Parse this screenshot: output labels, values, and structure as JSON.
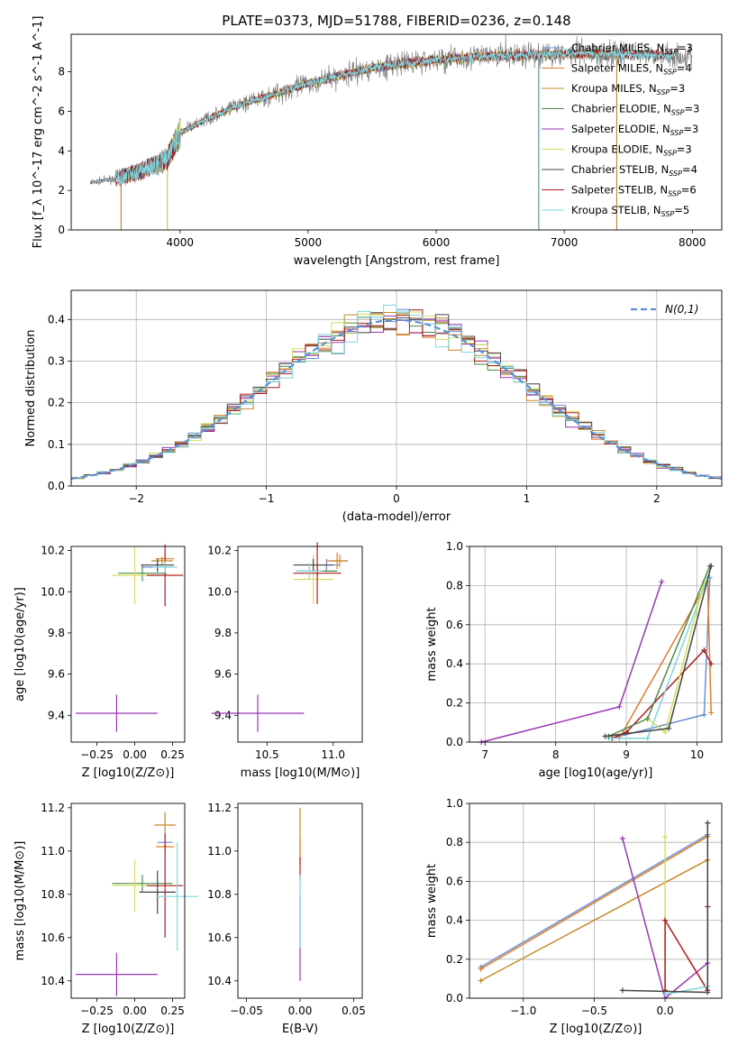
{
  "figure_title": "PLATE=0373, MJD=51788, FIBERID=0236, z=0.148",
  "colors": {
    "data": "#808080",
    "Chabrier MILES": "#6a8fd4",
    "Salpeter MILES": "#e07c2a",
    "Kroupa MILES": "#c6892a",
    "Chabrier ELODIE": "#4a8a4a",
    "Salpeter ELODIE": "#9b36b5",
    "Kroupa ELODIE": "#d4e05a",
    "Chabrier STELIB": "#444444",
    "Salpeter STELIB": "#b01c1c",
    "Kroupa STELIB": "#7fd6df",
    "gaussian": "#5b8fd6",
    "pink": "#e88ab8"
  },
  "chart_data": [
    {
      "id": "spectrum",
      "type": "line",
      "xlabel": "wavelength [Angstrom, rest frame]",
      "ylabel": "Flux [f_λ 10^-17 erg cm^-2 s^-1 A^-1]",
      "xlim": [
        3150,
        8230
      ],
      "ylim": [
        0,
        9.9
      ],
      "xticks": [
        "4000",
        "5000",
        "6000",
        "7000",
        "8000"
      ],
      "yticks": [
        "0",
        "2",
        "4",
        "6",
        "8"
      ],
      "legend_position": "top-right",
      "legend": [
        "Chabrier MILES, N_SSP=3",
        "Salpeter MILES, N_SSP=4",
        "Kroupa MILES, N_SSP=3",
        "Chabrier ELODIE, N_SSP=3",
        "Salpeter ELODIE, N_SSP=3",
        "Kroupa ELODIE, N_SSP=3",
        "Chabrier STELIB, N_SSP=4",
        "Salpeter STELIB, N_SSP=6",
        "Kroupa STELIB, N_SSP=5"
      ],
      "continuum": [
        [
          3300,
          2.4
        ],
        [
          3500,
          2.6
        ],
        [
          3700,
          3.0
        ],
        [
          3900,
          3.6
        ],
        [
          4000,
          4.9
        ],
        [
          4200,
          5.6
        ],
        [
          4500,
          6.4
        ],
        [
          4800,
          7.0
        ],
        [
          5000,
          7.4
        ],
        [
          5300,
          7.9
        ],
        [
          5600,
          8.3
        ],
        [
          6000,
          8.6
        ],
        [
          6400,
          8.8
        ],
        [
          7000,
          8.9
        ],
        [
          7500,
          8.9
        ],
        [
          7850,
          8.8
        ]
      ],
      "data_range": [
        3300,
        8000
      ],
      "model_ranges": {
        "MILES": [
          3540,
          7410
        ],
        "ELODIE": [
          3900,
          6800
        ],
        "STELIB": [
          3300,
          7850
        ]
      }
    },
    {
      "id": "residuals",
      "type": "histogram",
      "xlabel": "(data-model)/error",
      "ylabel": "Normed distribution",
      "xlim": [
        -2.5,
        2.5
      ],
      "ylim": [
        0,
        0.47
      ],
      "xticks": [
        "−2",
        "−1",
        "0",
        "1",
        "2"
      ],
      "yticks": [
        "0.0",
        "0.1",
        "0.2",
        "0.3",
        "0.4"
      ],
      "grid": true,
      "legend_position": "top-right",
      "legend": [
        "N(0,1)"
      ],
      "bin_width": 0.1
    },
    {
      "id": "age_vs_Z",
      "type": "errorbar",
      "xlabel": "Z [log10(Z/Z⊙)]",
      "ylabel": "age [log10(age/yr)]",
      "xlim": [
        -0.42,
        0.33
      ],
      "ylim": [
        9.27,
        10.22
      ],
      "xticks": [
        "−0.25",
        "0.00",
        "0.25"
      ],
      "yticks": [
        "9.4",
        "9.6",
        "9.8",
        "10.0",
        "10.2"
      ],
      "points": [
        {
          "model": "Chabrier MILES",
          "x": 0.15,
          "y": 10.12,
          "xerr": 0.1,
          "yerr": 0.03
        },
        {
          "model": "Salpeter MILES",
          "x": 0.2,
          "y": 10.16,
          "xerr": 0.06,
          "yerr": 0.02
        },
        {
          "model": "Kroupa MILES",
          "x": 0.18,
          "y": 10.15,
          "xerr": 0.07,
          "yerr": 0.02
        },
        {
          "model": "Chabrier ELODIE",
          "x": 0.05,
          "y": 10.09,
          "xerr": 0.16,
          "yerr": 0.04
        },
        {
          "model": "Salpeter ELODIE",
          "x": -0.12,
          "y": 9.41,
          "xerr": 0.27,
          "yerr": 0.09
        },
        {
          "model": "Kroupa ELODIE",
          "x": 0.0,
          "y": 10.08,
          "xerr": 0.15,
          "yerr": 0.14
        },
        {
          "model": "Chabrier STELIB",
          "x": 0.15,
          "y": 10.13,
          "xerr": 0.11,
          "yerr": 0.03
        },
        {
          "model": "Salpeter STELIB",
          "x": 0.2,
          "y": 10.08,
          "xerr": 0.12,
          "yerr": 0.15
        },
        {
          "model": "Kroupa STELIB",
          "x": 0.2,
          "y": 10.12,
          "xerr": 0.08,
          "yerr": 0.03
        }
      ]
    },
    {
      "id": "age_vs_mass",
      "type": "errorbar",
      "xlabel": "mass [log10(M/M⊙)]",
      "ylabel": "",
      "xlim": [
        10.28,
        11.22
      ],
      "ylim": [
        9.27,
        10.22
      ],
      "xticks": [
        "10.5",
        "11.0"
      ],
      "yticks": [
        "9.4",
        "9.6",
        "9.8",
        "10.0",
        "10.2"
      ],
      "points": [
        {
          "model": "Chabrier MILES",
          "x": 10.95,
          "y": 10.13,
          "xerr": 0.1,
          "yerr": 0.03
        },
        {
          "model": "Salpeter MILES",
          "x": 11.03,
          "y": 10.15,
          "xerr": 0.08,
          "yerr": 0.04
        },
        {
          "model": "Kroupa MILES",
          "x": 11.05,
          "y": 10.15,
          "xerr": 0.06,
          "yerr": 0.03
        },
        {
          "model": "Chabrier ELODIE",
          "x": 10.88,
          "y": 10.1,
          "xerr": 0.15,
          "yerr": 0.04
        },
        {
          "model": "Salpeter ELODIE",
          "x": 10.43,
          "y": 9.41,
          "xerr": 0.35,
          "yerr": 0.09
        },
        {
          "model": "Kroupa ELODIE",
          "x": 10.85,
          "y": 10.06,
          "xerr": 0.15,
          "yerr": 0.12
        },
        {
          "model": "Chabrier STELIB",
          "x": 10.85,
          "y": 10.13,
          "xerr": 0.15,
          "yerr": 0.03
        },
        {
          "model": "Salpeter STELIB",
          "x": 10.88,
          "y": 10.09,
          "xerr": 0.18,
          "yerr": 0.15
        },
        {
          "model": "Kroupa STELIB",
          "x": 10.82,
          "y": 10.1,
          "xerr": 0.1,
          "yerr": 0.04
        }
      ]
    },
    {
      "id": "weight_vs_age",
      "type": "line",
      "xlabel": "age [log10(age/yr)]",
      "ylabel": "mass weight",
      "xlim": [
        6.78,
        10.35
      ],
      "ylim": [
        0,
        1.0
      ],
      "xticks": [
        "7",
        "8",
        "9",
        "10"
      ],
      "yticks": [
        "0.0",
        "0.2",
        "0.4",
        "0.6",
        "0.8",
        "1.0"
      ],
      "grid": true,
      "series": [
        {
          "model": "Salpeter ELODIE",
          "x": [
            6.95,
            8.9,
            9.5
          ],
          "y": [
            0.0,
            0.18,
            0.82
          ]
        },
        {
          "model": "Chabrier MILES",
          "x": [
            8.8,
            10.1,
            10.18
          ],
          "y": [
            0.02,
            0.14,
            0.84
          ]
        },
        {
          "model": "Salpeter MILES",
          "x": [
            8.9,
            10.15,
            10.2
          ],
          "y": [
            0.02,
            0.82,
            0.15
          ]
        },
        {
          "model": "Salpeter STELIB",
          "x": [
            8.8,
            9.0,
            10.1,
            10.2
          ],
          "y": [
            0.02,
            0.05,
            0.47,
            0.4
          ]
        },
        {
          "model": "Kroupa STELIB",
          "x": [
            8.75,
            9.3,
            10.15
          ],
          "y": [
            0.02,
            0.02,
            0.84
          ]
        },
        {
          "model": "Kroupa ELODIE",
          "x": [
            9.3,
            9.55,
            10.1
          ],
          "y": [
            0.12,
            0.05,
            0.82
          ]
        },
        {
          "model": "Chabrier ELODIE",
          "x": [
            8.75,
            9.3,
            10.18
          ],
          "y": [
            0.03,
            0.12,
            0.9
          ]
        },
        {
          "model": "Chabrier STELIB",
          "x": [
            8.7,
            9.6,
            10.2
          ],
          "y": [
            0.03,
            0.07,
            0.9
          ]
        }
      ]
    },
    {
      "id": "mass_vs_Z",
      "type": "errorbar",
      "xlabel": "Z [log10(Z/Z⊙)]",
      "ylabel": "mass [log10(M/M⊙)]",
      "xlim": [
        -0.42,
        0.33
      ],
      "ylim": [
        10.32,
        11.22
      ],
      "xticks": [
        "−0.25",
        "0.00",
        "0.25"
      ],
      "yticks": [
        "10.4",
        "10.6",
        "10.8",
        "11.0",
        "11.2"
      ],
      "points": [
        {
          "model": "Chabrier MILES",
          "x": 0.2,
          "y": 11.04,
          "xerr": 0.05,
          "yerr": 0.02
        },
        {
          "model": "Salpeter MILES",
          "x": 0.2,
          "y": 11.02,
          "xerr": 0.06,
          "yerr": 0.02
        },
        {
          "model": "Kroupa MILES",
          "x": 0.2,
          "y": 11.12,
          "xerr": 0.07,
          "yerr": 0.06
        },
        {
          "model": "Chabrier ELODIE",
          "x": 0.05,
          "y": 10.85,
          "xerr": 0.2,
          "yerr": 0.04
        },
        {
          "model": "Salpeter ELODIE",
          "x": -0.12,
          "y": 10.43,
          "xerr": 0.27,
          "yerr": 0.1
        },
        {
          "model": "Kroupa ELODIE",
          "x": 0.0,
          "y": 10.84,
          "xerr": 0.15,
          "yerr": 0.12
        },
        {
          "model": "Chabrier STELIB",
          "x": 0.15,
          "y": 10.81,
          "xerr": 0.12,
          "yerr": 0.1
        },
        {
          "model": "Salpeter STELIB",
          "x": 0.2,
          "y": 10.84,
          "xerr": 0.12,
          "yerr": 0.24
        },
        {
          "model": "Kroupa STELIB",
          "x": 0.28,
          "y": 10.79,
          "xerr": 0.14,
          "yerr": 0.25
        }
      ]
    },
    {
      "id": "mass_vs_ebv",
      "type": "errorbar",
      "xlabel": "E(B-V)",
      "ylabel": "",
      "xlim": [
        -0.058,
        0.058
      ],
      "ylim": [
        10.32,
        11.22
      ],
      "xticks": [
        "−0.05",
        "0.00",
        "0.05"
      ],
      "yticks": [
        "10.4",
        "10.6",
        "10.8",
        "11.0",
        "11.2"
      ],
      "points": [
        {
          "model": "Salpeter ELODIE",
          "x": 0.0,
          "y": 10.6,
          "xerr": 0.0,
          "yerr": 0.2
        },
        {
          "model": "Kroupa MILES",
          "x": 0.0,
          "y": 11.08,
          "xerr": 0.0,
          "yerr": 0.12
        },
        {
          "model": "Salpeter MILES",
          "x": 0.0,
          "y": 11.0,
          "xerr": 0.0,
          "yerr": 0.06
        },
        {
          "model": "Salpeter STELIB",
          "x": 0.0,
          "y": 10.92,
          "xerr": 0.0,
          "yerr": 0.05
        },
        {
          "model": "Kroupa STELIB",
          "x": 0.0,
          "y": 10.72,
          "xerr": 0.0,
          "yerr": 0.17
        }
      ]
    },
    {
      "id": "weight_vs_Z",
      "type": "line",
      "xlabel": "Z [log10(Z/Z⊙)]",
      "ylabel": "mass weight",
      "xlim": [
        -1.38,
        0.4
      ],
      "ylim": [
        0,
        1.0
      ],
      "xticks": [
        "−1.0",
        "−0.5",
        "0.0"
      ],
      "yticks": [
        "0.0",
        "0.2",
        "0.4",
        "0.6",
        "0.8",
        "1.0"
      ],
      "grid": true,
      "series": [
        {
          "model": "Chabrier MILES",
          "x": [
            -1.3,
            0.3
          ],
          "y": [
            0.16,
            0.84
          ]
        },
        {
          "model": "Salpeter MILES",
          "x": [
            -1.3,
            0.3
          ],
          "y": [
            0.15,
            0.83
          ]
        },
        {
          "model": "Kroupa MILES",
          "x": [
            -1.3,
            0.3
          ],
          "y": [
            0.09,
            0.71
          ]
        },
        {
          "model": "Salpeter ELODIE",
          "x": [
            -0.3,
            0.0,
            0.3
          ],
          "y": [
            0.82,
            0.0,
            0.18
          ]
        },
        {
          "model": "Kroupa ELODIE",
          "x": [
            0.0,
            0.0
          ],
          "y": [
            0.04,
            0.83
          ]
        },
        {
          "model": "Salpeter STELIB",
          "x": [
            0.0,
            0.0,
            0.3,
            0.3
          ],
          "y": [
            0.04,
            0.4,
            0.04,
            0.47
          ]
        },
        {
          "model": "Kroupa STELIB",
          "x": [
            0.0,
            0.3,
            0.3
          ],
          "y": [
            0.02,
            0.06,
            0.9
          ]
        },
        {
          "model": "Chabrier STELIB",
          "x": [
            -0.3,
            0.3,
            0.3
          ],
          "y": [
            0.04,
            0.03,
            0.9
          ]
        }
      ]
    }
  ]
}
